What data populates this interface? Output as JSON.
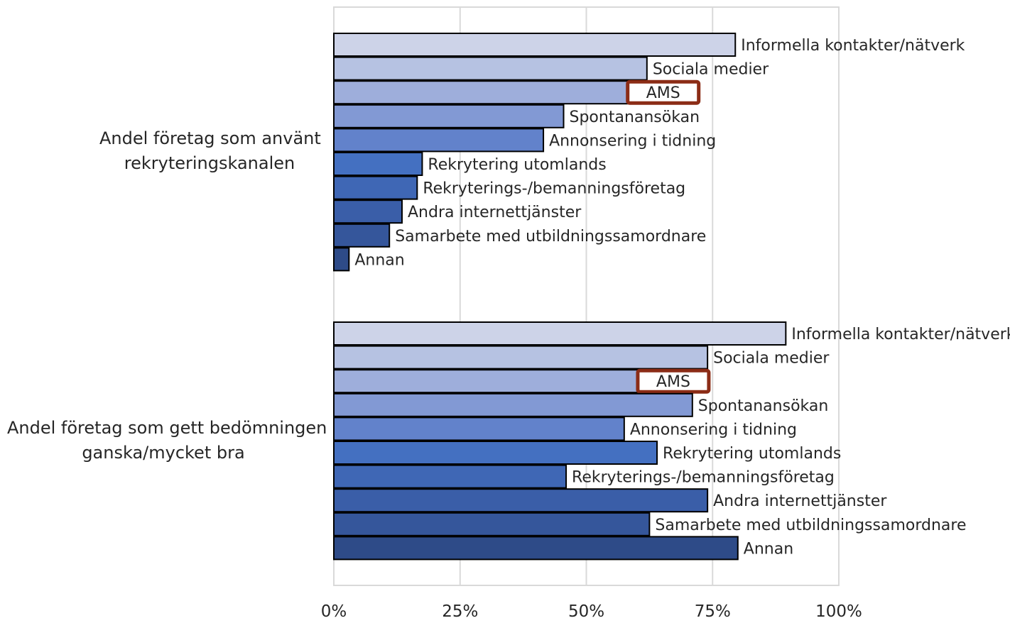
{
  "chart_data": {
    "type": "bar",
    "orientation": "horizontal",
    "xlim": [
      0,
      100
    ],
    "x_ticks": [
      "0%",
      "25%",
      "50%",
      "75%",
      "100%"
    ],
    "grid": true,
    "legend": "none",
    "groups": [
      {
        "label_line1": "Andel företag som använt",
        "label_line2": "rekryteringskanalen",
        "categories": [
          "Informella kontakter/nätverk",
          "Sociala medier",
          "AMS",
          "Spontanansökan",
          "Annonsering i tidning",
          "Rekrytering utomlands",
          "Rekryterings-/bemanningsföretag",
          "Andra internettjänster",
          "Samarbete med utbildningssamordnare",
          "Annan"
        ],
        "values": [
          79.5,
          62,
          61,
          45.5,
          41.5,
          17.5,
          16.5,
          13.5,
          11,
          3
        ],
        "highlighted": "AMS"
      },
      {
        "label_line1": "Andel företag som gett bedömningen",
        "label_line2": "ganska/mycket bra",
        "categories": [
          "Informella kontakter/nätverk",
          "Sociala medier",
          "AMS",
          "Spontanansökan",
          "Annonsering i tidning",
          "Rekrytering utomlands",
          "Rekryterings-/bemanningsföretag",
          "Andra internettjänster",
          "Samarbete med utbildningssamordnare",
          "Annan"
        ],
        "values": [
          89.5,
          74,
          63,
          71,
          57.5,
          64,
          46,
          74,
          62.5,
          80
        ],
        "highlighted": "AMS"
      }
    ]
  },
  "colors": {
    "bars": [
      "#cdd3e8",
      "#b6c2e2",
      "#9eaedb",
      "#8299d4",
      "#6282cb",
      "#4470c1",
      "#3f67b5",
      "#3a5ea8",
      "#35569b",
      "#2e4b88"
    ],
    "bar_outline": "#000000",
    "highlight_box": "#8b2c16",
    "grid": "#d9d9d9",
    "text": "#262626"
  }
}
